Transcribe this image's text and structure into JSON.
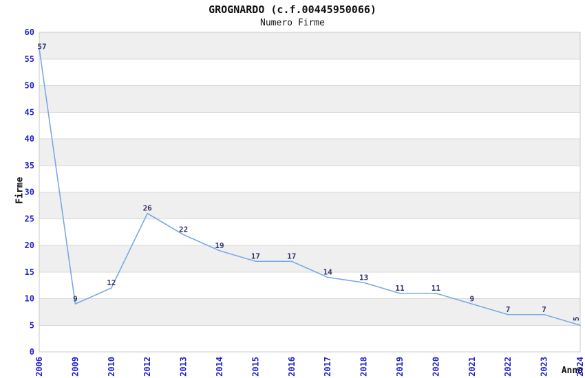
{
  "chart_data": {
    "type": "line",
    "title": "GROGNARDO (c.f.00445950066)",
    "subtitle": "Numero Firme",
    "xlabel": "Anno",
    "ylabel": "Firme",
    "categories": [
      "2006",
      "2009",
      "2010",
      "2012",
      "2013",
      "2014",
      "2015",
      "2016",
      "2017",
      "2018",
      "2019",
      "2020",
      "2021",
      "2022",
      "2023",
      "2024"
    ],
    "values": [
      57,
      9,
      12,
      26,
      22,
      19,
      17,
      17,
      14,
      13,
      11,
      11,
      9,
      7,
      7,
      5
    ],
    "ylim": [
      0,
      60
    ],
    "ytick_step": 5,
    "grid": "horizontal",
    "legend": "none",
    "band_fill": "alternating-gray-white-from-top",
    "data_labels": "shown-above-points",
    "colors": {
      "line": "#79a9e5",
      "tick_label": "#2222cc",
      "data_label": "#333366",
      "band": "#efefef",
      "grid_line": "#d8d8d8",
      "plot_border": "#c8c8c8",
      "text": "#111111",
      "background": "#ffffff"
    }
  }
}
